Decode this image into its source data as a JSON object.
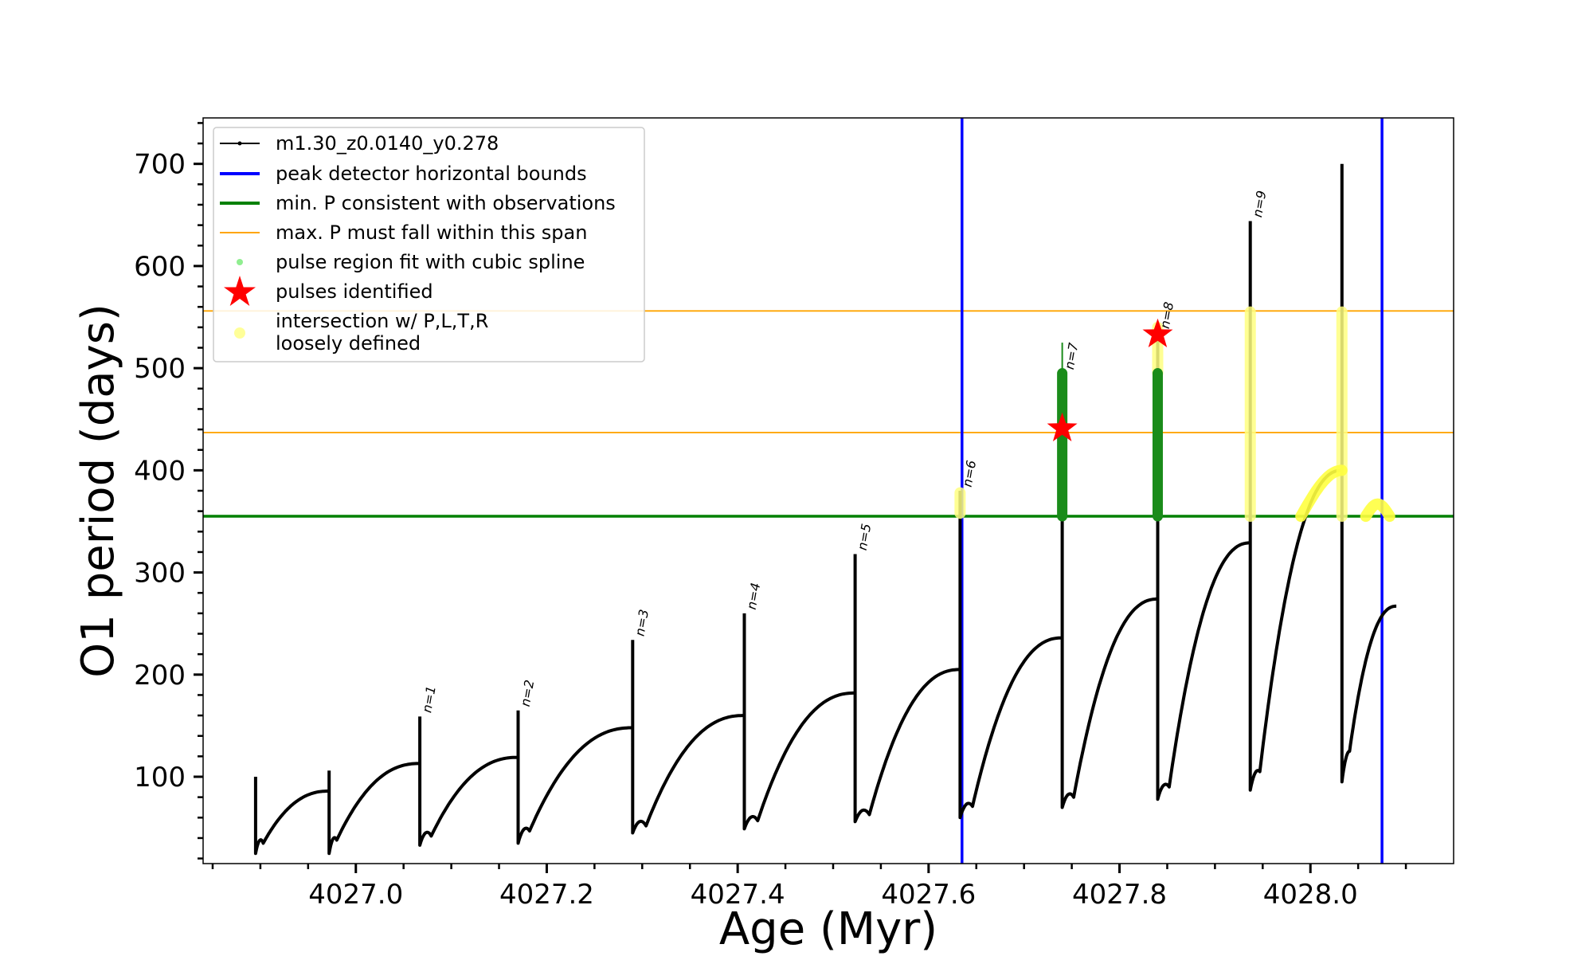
{
  "chart_data": {
    "type": "line",
    "xlabel": "Age (Myr)",
    "ylabel": "O1 period (days)",
    "xlim": [
      4026.84,
      4028.15
    ],
    "ylim": [
      15,
      745
    ],
    "x_ticks": [
      4027.0,
      4027.2,
      4027.4,
      4027.6,
      4027.8,
      4028.0
    ],
    "x_tick_labels": [
      "4027.0",
      "4027.2",
      "4027.4",
      "4027.6",
      "4027.8",
      "4028.0"
    ],
    "y_ticks": [
      100,
      200,
      300,
      400,
      500,
      600,
      700
    ],
    "y_tick_labels": [
      "100",
      "200",
      "300",
      "400",
      "500",
      "600",
      "700"
    ],
    "legend_position": "upper-left",
    "legend": [
      {
        "label": "m1.30_z0.0140_y0.278",
        "marker": "line-dot",
        "color": "#000000"
      },
      {
        "label": "peak detector horizontal bounds",
        "marker": "line",
        "color": "#0000ff"
      },
      {
        "label": "min. P consistent with observations",
        "marker": "line",
        "color": "#008000"
      },
      {
        "label": "max. P must fall within this span",
        "marker": "thin-line",
        "color": "#ffa500"
      },
      {
        "label": "pulse region fit with cubic spline",
        "marker": "dot",
        "color": "#90ee90"
      },
      {
        "label": "pulses identified",
        "marker": "star",
        "color": "#ff0000"
      },
      {
        "label": "intersection w/ P,L,T,R",
        "label2": "loosely defined",
        "marker": "circle",
        "color": "#ffff99"
      }
    ],
    "vertical_lines": [
      {
        "x": 4027.635,
        "color": "#0000ff"
      },
      {
        "x": 4028.075,
        "color": "#0000ff"
      }
    ],
    "horizontal_lines": [
      {
        "y": 355,
        "color": "#008000"
      },
      {
        "y": 556,
        "color": "#ffa500"
      },
      {
        "y": 437,
        "color": "#ffa500"
      }
    ],
    "pulses": [
      {
        "n": 0,
        "label": "",
        "x_start": 4026.895,
        "dip": 35,
        "dip_dx": 0.008,
        "x_end": 4026.972,
        "end": 86,
        "spike_top": 100,
        "spike_bottom": 25
      },
      {
        "n": 0,
        "label": "",
        "x_start": 4026.972,
        "dip": 38,
        "dip_dx": 0.008,
        "x_end": 4027.067,
        "end": 113,
        "spike_top": 106,
        "spike_bottom": 25
      },
      {
        "n": 1,
        "label": "n=1",
        "x_start": 4027.067,
        "dip": 42,
        "dip_dx": 0.012,
        "x_end": 4027.17,
        "end": 119,
        "spike_top": 159,
        "spike_bottom": 33
      },
      {
        "n": 2,
        "label": "n=2",
        "x_start": 4027.17,
        "dip": 47,
        "dip_dx": 0.012,
        "x_end": 4027.29,
        "end": 148,
        "spike_top": 165,
        "spike_bottom": 35
      },
      {
        "n": 3,
        "label": "n=3",
        "x_start": 4027.29,
        "dip": 52,
        "dip_dx": 0.014,
        "x_end": 4027.407,
        "end": 160,
        "spike_top": 234,
        "spike_bottom": 45
      },
      {
        "n": 4,
        "label": "n=4",
        "x_start": 4027.407,
        "dip": 57,
        "dip_dx": 0.014,
        "x_end": 4027.523,
        "end": 182,
        "spike_top": 260,
        "spike_bottom": 49
      },
      {
        "n": 5,
        "label": "n=5",
        "x_start": 4027.523,
        "dip": 63,
        "dip_dx": 0.015,
        "x_end": 4027.633,
        "end": 205,
        "spike_top": 318,
        "spike_bottom": 56
      },
      {
        "n": 6,
        "label": "n=6",
        "x_start": 4027.633,
        "dip": 71,
        "dip_dx": 0.013,
        "x_end": 4027.74,
        "end": 236,
        "spike_top": 380,
        "spike_bottom": 60
      },
      {
        "n": 7,
        "label": "n=7",
        "x_start": 4027.74,
        "dip": 80,
        "dip_dx": 0.012,
        "x_end": 4027.84,
        "end": 274,
        "spike_top": 495,
        "spike_bottom": 70
      },
      {
        "n": 8,
        "label": "n=8",
        "x_start": 4027.84,
        "dip": 90,
        "dip_dx": 0.012,
        "x_end": 4027.937,
        "end": 329,
        "spike_top": 535,
        "spike_bottom": 78
      },
      {
        "n": 9,
        "label": "n=9",
        "x_start": 4027.937,
        "dip": 105,
        "dip_dx": 0.01,
        "x_end": 4028.033,
        "end": 400,
        "spike_top": 644,
        "spike_bottom": 87
      },
      {
        "n": 10,
        "label": "",
        "x_start": 4028.033,
        "dip": 125,
        "dip_dx": 0.008,
        "x_end": 4028.09,
        "end": 267,
        "spike_top": 700,
        "spike_bottom": 95
      }
    ],
    "cubic_spline_regions": [
      {
        "x": 4027.74,
        "y_min": 355,
        "y_max": 495,
        "tip": 525
      },
      {
        "x": 4027.84,
        "y_min": 355,
        "y_max": 495,
        "tip": 495
      }
    ],
    "loose_intersections": [
      {
        "x": 4027.633,
        "y_min": 358,
        "y_max": 378
      },
      {
        "x": 4027.84,
        "y_min": 495,
        "y_max": 540
      },
      {
        "x": 4027.937,
        "y_min": 355,
        "y_max": 555
      },
      {
        "x": 4028.033,
        "y_min": 355,
        "y_max": 555
      }
    ],
    "loose_arcs": [
      {
        "x_start": 4027.99,
        "x_end": 4028.033,
        "y_start": 355,
        "y_peak": 400
      },
      {
        "x_start": 4028.058,
        "x_end": 4028.083,
        "y_start": 355,
        "y_peak": 367
      }
    ],
    "identified_pulses": [
      {
        "x": 4027.74,
        "y": 441
      },
      {
        "x": 4027.84,
        "y": 533
      }
    ]
  }
}
